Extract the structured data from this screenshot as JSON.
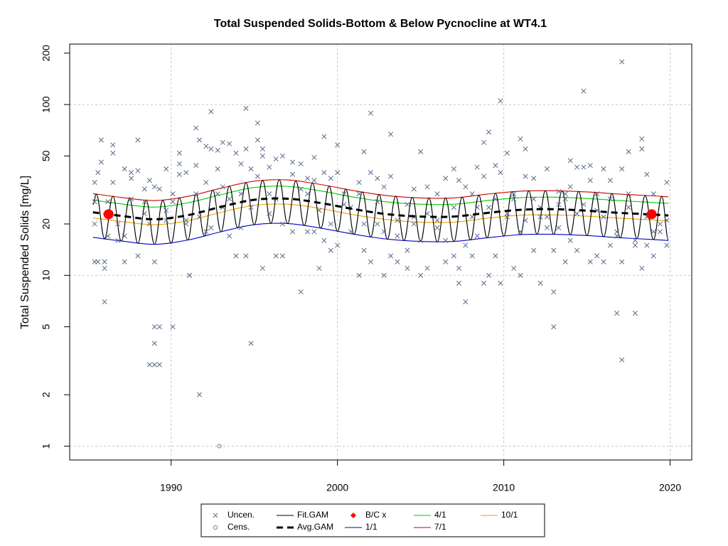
{
  "chart_data": {
    "type": "scatter",
    "title": "Total Suspended Solids-Bottom & Below Pycnocline at WT4.1",
    "y_label": "Total Suspended Solids [mg/L]",
    "xlim": [
      1983.9,
      2021.3
    ],
    "ylim": [
      0.83,
      226
    ],
    "log_y": true,
    "xticks": [
      1990,
      2000,
      2010,
      2020
    ],
    "yticks": [
      1,
      2,
      5,
      10,
      20,
      50,
      100,
      200
    ],
    "ygrid": [
      1,
      10,
      100
    ],
    "grid": true,
    "legend": "bottom",
    "series": [
      {
        "name": "Uncen.",
        "marker": "x",
        "color": "#5a6a8a",
        "x": [
          1985.4,
          1985.4,
          1985.4,
          1985.4,
          1985.6,
          1985.6,
          1985.8,
          1985.8,
          1986.0,
          1986.0,
          1986.0,
          1986.2,
          1986.2,
          1986.5,
          1986.5,
          1986.5,
          1986.8,
          1986.8,
          1987.2,
          1987.2,
          1987.2,
          1987.6,
          1987.6,
          1987.6,
          1988.0,
          1988.0,
          1988.0,
          1988.4,
          1988.4,
          1988.4,
          1988.7,
          1988.7,
          1988.7,
          1989.0,
          1989.0,
          1989.0,
          1989.0,
          1989.0,
          1989.3,
          1989.3,
          1989.3,
          1989.7,
          1989.7,
          1989.7,
          1990.1,
          1990.1,
          1990.1,
          1990.5,
          1990.5,
          1990.5,
          1990.9,
          1990.9,
          1990.9,
          1991.1,
          1991.1,
          1991.5,
          1991.5,
          1991.5,
          1991.7,
          1991.7,
          1991.7,
          1992.1,
          1992.1,
          1992.1,
          1992.4,
          1992.4,
          1992.4,
          1992.8,
          1992.8,
          1992.8,
          1993.1,
          1993.1,
          1993.1,
          1993.5,
          1993.5,
          1993.5,
          1993.9,
          1993.9,
          1994.2,
          1994.2,
          1994.2,
          1994.5,
          1994.5,
          1994.5,
          1994.8,
          1994.8,
          1994.8,
          1995.2,
          1995.2,
          1995.2,
          1995.5,
          1995.5,
          1995.5,
          1995.9,
          1995.9,
          1995.9,
          1996.3,
          1996.3,
          1996.3,
          1996.7,
          1996.7,
          1996.7,
          1997.3,
          1997.3,
          1997.3,
          1997.8,
          1997.8,
          1997.8,
          1998.2,
          1998.2,
          1998.2,
          1998.6,
          1998.6,
          1998.6,
          1998.9,
          1998.9,
          1999.2,
          1999.2,
          1999.2,
          1999.6,
          1999.6,
          1999.6,
          2000.0,
          2000.0,
          2000.0,
          2000.4,
          2000.4,
          2000.8,
          2000.8,
          2001.3,
          2001.3,
          2001.3,
          2001.6,
          2001.6,
          2001.6,
          2002.0,
          2002.0,
          2002.0,
          2002.4,
          2002.4,
          2002.4,
          2002.8,
          2002.8,
          2002.8,
          2003.2,
          2003.2,
          2003.2,
          2003.6,
          2003.6,
          2003.6,
          2004.2,
          2004.2,
          2004.2,
          2004.6,
          2004.6,
          2004.6,
          2005.0,
          2005.0,
          2005.0,
          2005.4,
          2005.4,
          2005.4,
          2006.0,
          2006.0,
          2006.0,
          2006.5,
          2006.5,
          2006.5,
          2007.0,
          2007.0,
          2007.0,
          2007.3,
          2007.3,
          2007.3,
          2007.7,
          2007.7,
          2007.7,
          2008.1,
          2008.1,
          2008.1,
          2008.4,
          2008.4,
          2008.4,
          2008.8,
          2008.8,
          2008.8,
          2009.1,
          2009.1,
          2009.1,
          2009.5,
          2009.5,
          2009.5,
          2009.8,
          2009.8,
          2009.8,
          2010.2,
          2010.2,
          2010.2,
          2010.6,
          2010.6,
          2010.6,
          2011.0,
          2011.0,
          2011.0,
          2011.3,
          2011.3,
          2011.3,
          2011.8,
          2011.8,
          2011.8,
          2012.2,
          2012.2,
          2012.2,
          2012.6,
          2012.6,
          2012.6,
          2013.0,
          2013.0,
          2013.0,
          2013.3,
          2013.3,
          2013.3,
          2013.7,
          2013.7,
          2013.7,
          2014.0,
          2014.0,
          2014.0,
          2014.4,
          2014.4,
          2014.4,
          2014.8,
          2014.8,
          2014.8,
          2015.2,
          2015.2,
          2015.2,
          2015.6,
          2015.6,
          2015.6,
          2016.0,
          2016.0,
          2016.0,
          2016.4,
          2016.4,
          2016.4,
          2016.8,
          2016.8,
          2016.8,
          2017.1,
          2017.1,
          2017.1,
          2017.1,
          2017.5,
          2017.5,
          2017.5,
          2017.9,
          2017.9,
          2017.9,
          2018.3,
          2018.3,
          2018.3,
          2018.6,
          2018.6,
          2018.6,
          2019.0,
          2019.0,
          2019.0,
          2019.4,
          2019.4,
          2019.8,
          2019.8,
          2019.8
        ],
        "values": [
          35,
          27,
          20,
          12,
          40,
          12,
          62,
          46,
          12,
          11,
          7,
          27,
          17,
          35,
          52,
          58,
          20,
          16,
          12,
          42,
          17,
          37,
          40,
          28,
          13,
          41,
          62,
          32,
          27,
          23,
          36,
          3,
          20,
          4,
          5,
          12,
          3,
          33,
          5,
          3,
          32,
          42,
          24,
          21,
          5,
          30,
          27,
          52,
          45,
          39,
          40,
          20,
          21,
          10,
          10,
          73,
          44,
          30,
          2,
          62,
          22,
          57,
          35,
          18,
          91,
          55,
          19,
          54,
          42,
          30,
          33,
          25,
          60,
          59,
          28,
          17,
          52,
          13,
          45,
          30,
          19,
          95,
          55,
          13,
          42,
          4,
          25,
          62,
          78,
          38,
          50,
          11,
          55,
          43,
          30,
          23,
          48,
          13,
          28,
          50,
          13,
          20,
          46,
          39,
          18,
          8,
          45,
          32,
          37,
          30,
          18,
          49,
          36,
          18,
          11,
          24,
          65,
          40,
          16,
          37,
          14,
          20,
          40,
          58,
          15,
          30,
          26,
          25,
          18,
          30,
          35,
          10,
          53,
          14,
          20,
          89,
          40,
          12,
          37,
          27,
          20,
          10,
          33,
          18,
          67,
          38,
          13,
          21,
          17,
          12,
          26,
          11,
          14,
          32,
          20,
          22,
          53,
          10,
          16,
          33,
          23,
          11,
          30,
          19,
          21,
          37,
          12,
          16,
          42,
          25,
          13,
          36,
          9,
          11,
          7,
          33,
          15,
          22,
          13,
          30,
          43,
          25,
          17,
          60,
          9,
          38,
          69,
          25,
          10,
          44,
          28,
          13,
          105,
          40,
          9,
          52,
          23,
          22,
          11,
          30,
          28,
          63,
          10,
          18,
          38,
          55,
          21,
          37,
          28,
          14,
          25,
          9,
          22,
          42,
          22,
          19,
          8,
          14,
          5,
          31,
          19,
          26,
          12,
          30,
          28,
          47,
          33,
          16,
          43,
          23,
          14,
          120,
          43,
          26,
          44,
          36,
          12,
          30,
          13,
          24,
          42,
          22,
          12,
          36,
          28,
          15,
          6,
          17,
          18,
          178,
          3.2,
          42,
          12,
          53,
          30,
          25,
          6,
          16,
          15,
          63,
          55,
          11,
          39,
          15,
          22,
          30,
          18,
          13,
          18,
          20,
          35,
          15,
          21
        ]
      },
      {
        "name": "Cens.",
        "marker": "circle",
        "color": "#808080",
        "x": [
          1992.9
        ],
        "values": [
          1
        ]
      },
      {
        "name": "Fit.GAM",
        "line": "wave",
        "color": "#000000",
        "x": [
          1985.3,
          1985.5,
          1986,
          1986.5,
          1987,
          1987.5,
          1988,
          1988.5,
          1989,
          1989.5,
          1990,
          1990.5,
          1991,
          1991.5,
          1992,
          1992.5,
          1993,
          1993.5,
          1994,
          1994.5,
          1995,
          1995.5,
          1996,
          1996.5,
          1997,
          1997.5,
          1998,
          1998.5,
          1999,
          1999.5,
          2000,
          2000.5,
          2001,
          2001.5,
          2002,
          2002.5,
          2003,
          2003.5,
          2004,
          2004.5,
          2005,
          2005.5,
          2006,
          2006.5,
          2007,
          2007.5,
          2008,
          2008.5,
          2009,
          2009.5,
          2010,
          2010.5,
          2011,
          2011.5,
          2012,
          2012.5,
          2013,
          2013.5,
          2014,
          2014.5,
          2015,
          2015.5,
          2016,
          2016.5,
          2017,
          2017.5,
          2018,
          2018.5,
          2019,
          2019.5,
          2019.9
        ],
        "values": [
          26.0,
          29.9,
          16.4,
          29.1,
          15.9,
          28.2,
          15.4,
          27.5,
          15.2,
          27.5,
          15.4,
          28.4,
          16.1,
          29.8,
          17.0,
          31.5,
          18.0,
          33.3,
          19.0,
          34.9,
          19.8,
          36.0,
          20.2,
          36.3,
          20.1,
          35.7,
          19.6,
          34.7,
          18.9,
          33.3,
          18.1,
          32.0,
          17.4,
          30.8,
          16.8,
          29.8,
          16.3,
          29.1,
          16.0,
          28.6,
          15.8,
          28.4,
          15.7,
          28.4,
          15.8,
          28.7,
          16.1,
          29.4,
          16.6,
          30.2,
          17.0,
          30.9,
          17.3,
          31.2,
          17.4,
          31.3,
          17.4,
          31.2,
          17.3,
          31.0,
          17.1,
          30.5,
          16.8,
          30.1,
          16.6,
          29.7,
          16.4,
          29.3,
          16.2,
          29.0,
          16.1
        ]
      },
      {
        "name": "Avg.GAM",
        "line": "dashed",
        "color": "#000000",
        "x": [
          1985.3,
          1987,
          1989,
          1991,
          1993,
          1995,
          1997,
          1999,
          2001,
          2003,
          2005,
          2007,
          2009,
          2011,
          2013,
          2015,
          2017,
          2019,
          2019.9
        ],
        "values": [
          23.4,
          22.3,
          21.3,
          22.5,
          25.2,
          27.7,
          28.1,
          26.5,
          24.4,
          22.8,
          22.1,
          22.1,
          23.2,
          24.2,
          24.4,
          23.9,
          23.2,
          22.7,
          22.4
        ]
      },
      {
        "name": "B/C x",
        "marker": "dot",
        "color": "#ff0000",
        "x": [
          1986.24,
          2018.89
        ],
        "values": [
          22.8,
          22.8
        ]
      },
      {
        "name": "1/1",
        "line": "smooth",
        "color": "#0000cd",
        "x": [
          1985.3,
          1987,
          1989,
          1991,
          1993,
          1995,
          1997,
          1999,
          2001,
          2003,
          2005,
          2007,
          2009,
          2011,
          2013,
          2015,
          2017,
          2019,
          2019.9
        ],
        "values": [
          16.7,
          15.9,
          15.2,
          16.1,
          18.0,
          19.8,
          20.1,
          18.9,
          17.4,
          16.3,
          15.8,
          15.8,
          16.6,
          17.3,
          17.4,
          17.1,
          16.6,
          16.2,
          16.0
        ]
      },
      {
        "name": "4/1",
        "line": "smooth",
        "color": "#00cd00",
        "x": [
          1985.3,
          1987,
          1989,
          1991,
          1993,
          1995,
          1997,
          1999,
          2001,
          2003,
          2005,
          2007,
          2009,
          2011,
          2013,
          2015,
          2017,
          2019,
          2019.9
        ],
        "values": [
          27.6,
          26.2,
          25.1,
          26.6,
          29.7,
          32.7,
          33.2,
          31.2,
          28.7,
          26.9,
          26.1,
          26.1,
          27.4,
          28.5,
          28.7,
          28.2,
          27.4,
          26.7,
          26.4
        ]
      },
      {
        "name": "7/1",
        "line": "smooth",
        "color": "#cd0000",
        "x": [
          1985.3,
          1987,
          1989,
          1991,
          1993,
          1995,
          1997,
          1999,
          2001,
          2003,
          2005,
          2007,
          2009,
          2011,
          2013,
          2015,
          2017,
          2019,
          2019.9
        ],
        "values": [
          30.1,
          28.6,
          27.4,
          29.0,
          32.4,
          35.6,
          36.2,
          34.0,
          31.3,
          29.3,
          28.4,
          28.4,
          29.9,
          31.1,
          31.3,
          30.8,
          29.9,
          29.2,
          28.8
        ]
      },
      {
        "name": "10/1",
        "line": "smooth",
        "color": "#eea000",
        "x": [
          1985.3,
          1987,
          1989,
          1991,
          1993,
          1995,
          1997,
          1999,
          2001,
          2003,
          2005,
          2007,
          2009,
          2011,
          2013,
          2015,
          2017,
          2019,
          2019.9
        ],
        "values": [
          21.7,
          20.7,
          19.8,
          20.9,
          23.4,
          25.7,
          26.1,
          24.6,
          22.6,
          21.2,
          20.5,
          20.5,
          21.6,
          22.5,
          22.6,
          22.2,
          21.6,
          21.1,
          20.8
        ]
      }
    ]
  }
}
